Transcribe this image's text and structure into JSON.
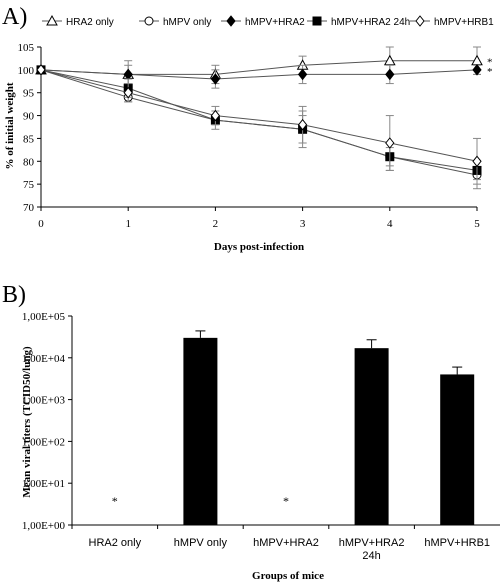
{
  "chart_data": [
    {
      "type": "line",
      "panel_label": "A)",
      "xlabel": "Days post-infection",
      "ylabel": "% of initial weight",
      "x": [
        0,
        1,
        2,
        3,
        4,
        5
      ],
      "xlim": [
        0,
        5
      ],
      "ylim": [
        70,
        105
      ],
      "yticks": [
        "70",
        "75",
        "80",
        "85",
        "90",
        "95",
        "100",
        "105"
      ],
      "xticks": [
        "0",
        "1",
        "2",
        "3",
        "4",
        "5"
      ],
      "legend_position": "top",
      "series": [
        {
          "name": "HRA2 only",
          "marker": "triangle-open",
          "values": [
            100,
            99,
            99,
            101,
            102,
            102
          ],
          "error": [
            0,
            2,
            2,
            2,
            3,
            3
          ],
          "annotation": "*"
        },
        {
          "name": "hMPV only",
          "marker": "circle-open",
          "values": [
            100,
            94,
            89,
            87,
            81,
            77
          ],
          "error": [
            0,
            1,
            2,
            4,
            3,
            3
          ],
          "annotation": ""
        },
        {
          "name": "hMPV+HRA2",
          "marker": "diamond-filled",
          "values": [
            100,
            99,
            98,
            99,
            99,
            100
          ],
          "error": [
            0,
            3,
            2,
            2,
            2,
            1
          ],
          "annotation": "*"
        },
        {
          "name": "hMPV+HRA2 24h",
          "marker": "square-filled",
          "values": [
            100,
            96,
            89,
            87,
            81,
            78
          ],
          "error": [
            0,
            2,
            1,
            3,
            2,
            2
          ],
          "annotation": ""
        },
        {
          "name": "hMPV+HRB1",
          "marker": "diamond-open",
          "values": [
            100,
            95,
            90,
            88,
            84,
            80
          ],
          "error": [
            0,
            2,
            2,
            4,
            6,
            5
          ],
          "annotation": ""
        }
      ]
    },
    {
      "type": "bar",
      "panel_label": "B)",
      "xlabel": "Groups of mice",
      "ylabel": "Mean viral titers (TCID50/lung)",
      "scale": "log",
      "ylim": [
        1,
        100000
      ],
      "yticks": [
        "1,00E+00",
        "1,00E+01",
        "1,00E+02",
        "1,00E+03",
        "1,00E+04",
        "1,00E+05"
      ],
      "categories": [
        "HRA2 only",
        "hMPV only",
        "hMPV+HRA2",
        "hMPV+HRA2 24h",
        "hMPV+HRB1"
      ],
      "values": [
        null,
        30000,
        null,
        17000,
        4000
      ],
      "error_upper": [
        null,
        44000,
        null,
        27000,
        6000
      ],
      "annotations": [
        "*",
        "",
        "*",
        "",
        ""
      ],
      "bar_color": "#000000"
    }
  ]
}
